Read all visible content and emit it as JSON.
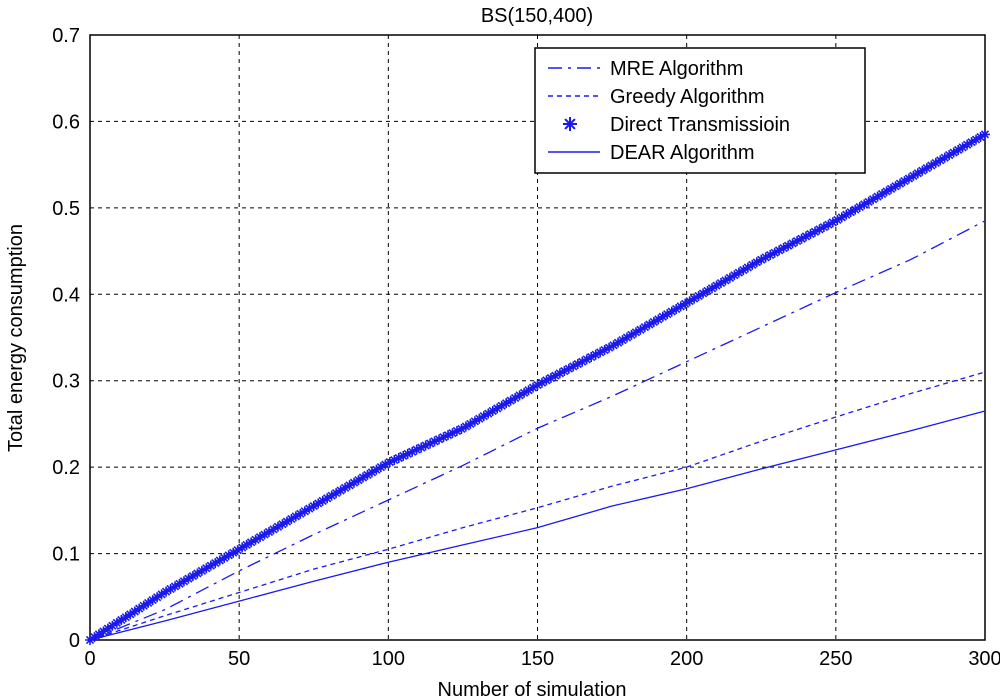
{
  "chart_data": {
    "type": "line",
    "title": "BS(150,400)",
    "xlabel": "Number of simulation",
    "ylabel": "Total energy consumption",
    "xlim": [
      0,
      300
    ],
    "ylim": [
      0,
      0.7
    ],
    "grid": true,
    "legend_position": "top-right",
    "x_ticks": [
      {
        "value": 0,
        "label": "0"
      },
      {
        "value": 50,
        "label": "50"
      },
      {
        "value": 100,
        "label": "100"
      },
      {
        "value": 150,
        "label": "150"
      },
      {
        "value": 200,
        "label": "200"
      },
      {
        "value": 250,
        "label": "250"
      },
      {
        "value": 300,
        "label": "300"
      }
    ],
    "y_ticks": [
      {
        "value": 0,
        "label": "0"
      },
      {
        "value": 0.1,
        "label": "0.1"
      },
      {
        "value": 0.2,
        "label": "0.2"
      },
      {
        "value": 0.3,
        "label": "0.3"
      },
      {
        "value": 0.4,
        "label": "0.4"
      },
      {
        "value": 0.5,
        "label": "0.5"
      },
      {
        "value": 0.6,
        "label": "0.6"
      },
      {
        "value": 0.7,
        "label": "0.7"
      }
    ],
    "line_color": "#1a1aee",
    "series": [
      {
        "name": "MRE Algorithm",
        "style": "dashdot",
        "x": [
          0,
          25,
          50,
          75,
          100,
          125,
          150,
          175,
          200,
          225,
          250,
          275,
          300
        ],
        "y": [
          0,
          0.035,
          0.08,
          0.122,
          0.162,
          0.202,
          0.245,
          0.282,
          0.322,
          0.362,
          0.402,
          0.44,
          0.485
        ]
      },
      {
        "name": "Greedy Algorithm",
        "style": "dotted",
        "x": [
          0,
          25,
          50,
          75,
          100,
          125,
          150,
          175,
          200,
          225,
          250,
          275,
          300
        ],
        "y": [
          0,
          0.028,
          0.055,
          0.082,
          0.105,
          0.13,
          0.153,
          0.178,
          0.2,
          0.23,
          0.258,
          0.285,
          0.31
        ]
      },
      {
        "name": "Direct Transmissioin",
        "style": "star",
        "x": [
          0,
          25,
          50,
          75,
          100,
          125,
          150,
          175,
          200,
          225,
          250,
          275,
          300
        ],
        "y": [
          0,
          0.055,
          0.105,
          0.155,
          0.205,
          0.245,
          0.295,
          0.34,
          0.39,
          0.44,
          0.485,
          0.535,
          0.585
        ]
      },
      {
        "name": "DEAR Algorithm",
        "style": "solid",
        "x": [
          0,
          25,
          50,
          75,
          100,
          125,
          150,
          175,
          200,
          225,
          250,
          275,
          300
        ],
        "y": [
          0,
          0.022,
          0.045,
          0.068,
          0.09,
          0.11,
          0.13,
          0.155,
          0.175,
          0.198,
          0.22,
          0.242,
          0.265
        ]
      }
    ]
  }
}
